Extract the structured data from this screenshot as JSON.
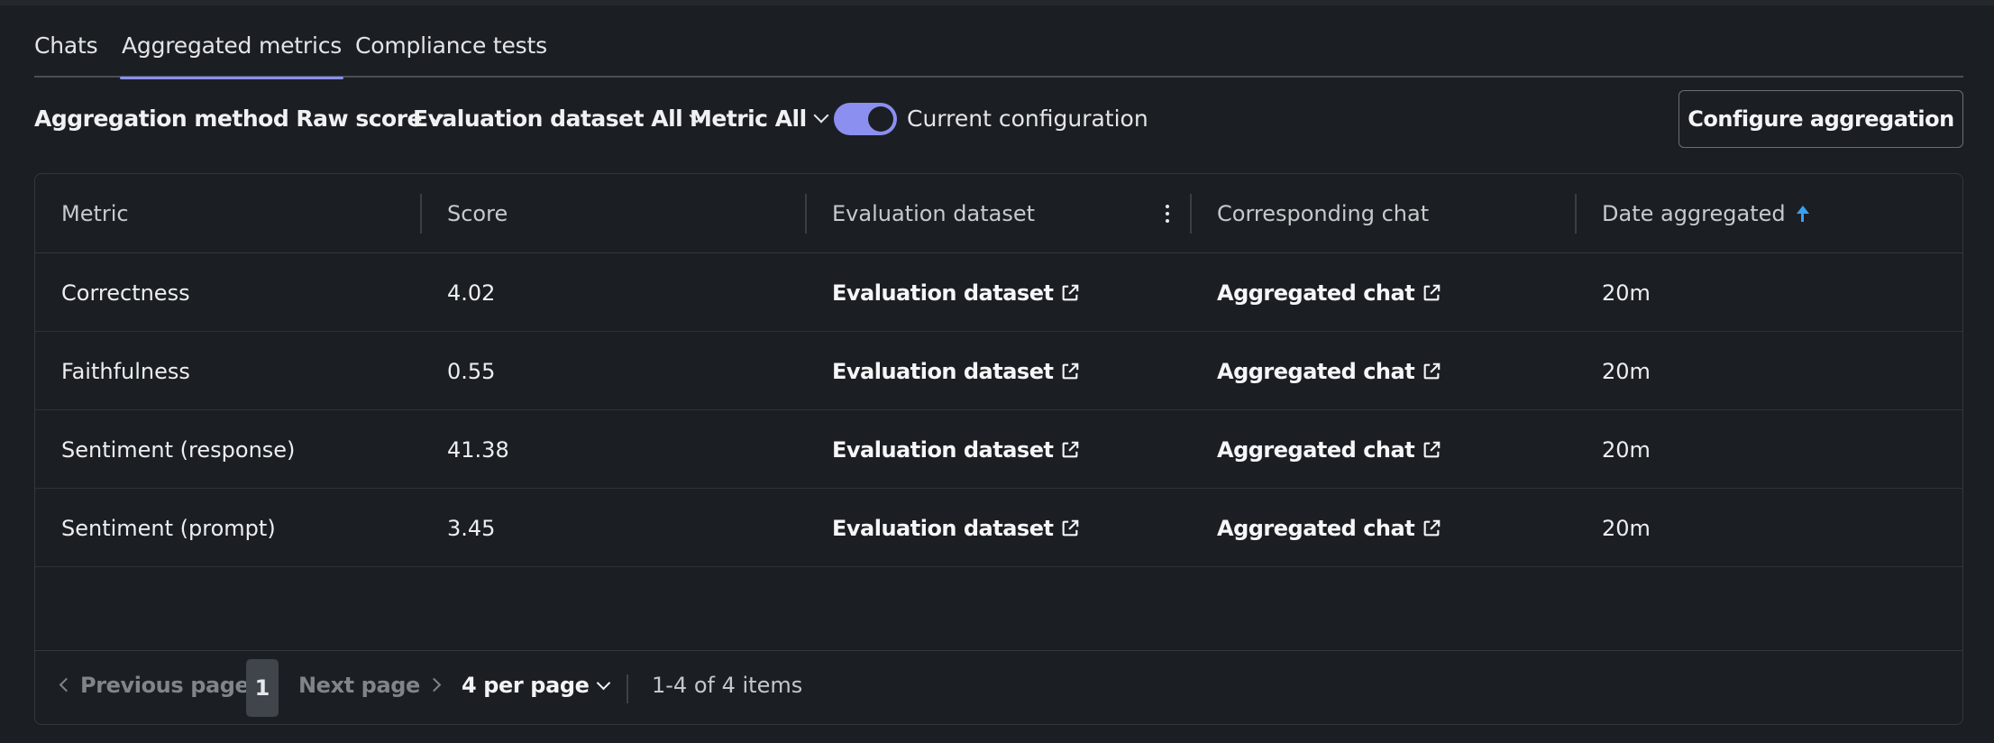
{
  "tabs": [
    {
      "label": "Chats",
      "active": false
    },
    {
      "label": "Aggregated metrics",
      "active": true
    },
    {
      "label": "Compliance tests",
      "active": false
    }
  ],
  "toolbar": {
    "aggregation_method": "Aggregation method Raw score",
    "evaluation_dataset": "Evaluation dataset All",
    "metric": "Metric All",
    "toggle_on": true,
    "toggle_label": "Current configuration",
    "configure_button": "Configure aggregation"
  },
  "colors": {
    "accent": "#8b8ff0",
    "sort_arrow": "#3aa0f0",
    "background": "#1b1f23"
  },
  "table": {
    "columns": [
      "Metric",
      "Score",
      "Evaluation dataset",
      "Corresponding chat",
      "Date aggregated"
    ],
    "sort_column": "Date aggregated",
    "sort_direction": "ascending",
    "rows": [
      {
        "metric": "Correctness",
        "score": "4.02",
        "dataset": "Evaluation dataset",
        "chat": "Aggregated chat",
        "date": "20m"
      },
      {
        "metric": "Faithfulness",
        "score": "0.55",
        "dataset": "Evaluation dataset",
        "chat": "Aggregated chat",
        "date": "20m"
      },
      {
        "metric": "Sentiment (response)",
        "score": "41.38",
        "dataset": "Evaluation dataset",
        "chat": "Aggregated chat",
        "date": "20m"
      },
      {
        "metric": "Sentiment (prompt)",
        "score": "3.45",
        "dataset": "Evaluation dataset",
        "chat": "Aggregated chat",
        "date": "20m"
      }
    ]
  },
  "pagination": {
    "previous": "Previous page",
    "current_page": "1",
    "next": "Next page",
    "per_page": "4 per page",
    "item_count": "1-4 of 4 items"
  }
}
